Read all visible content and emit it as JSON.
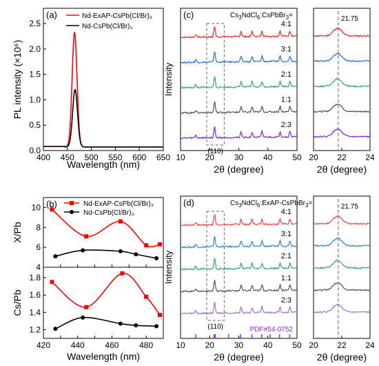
{
  "chart_data": [
    {
      "id": "a",
      "panel_label": "(a)",
      "type": "line",
      "xlabel": "Wavelength (nm)",
      "ylabel": "PL intensity (×10⁶)",
      "xlim": [
        400,
        650
      ],
      "ylim": [
        0,
        2.8
      ],
      "xticks": [
        "400",
        "450",
        "500",
        "550",
        "600",
        "650"
      ],
      "yticks": [
        "0.0",
        "0.5",
        "1.0",
        "1.5",
        "2.0",
        "2.5"
      ],
      "legend_position": "top-left",
      "series": [
        {
          "name": "Nd-ExAP-CsPb(Cl/Br)₃",
          "color": "#ff0000",
          "peak_x": 465,
          "peak_y": 2.25,
          "baseline": 0.07,
          "fwhm_nm": 12
        },
        {
          "name": "Nd-CsPb(Cl/Br)₃",
          "color": "#000000",
          "peak_x": 466,
          "peak_y": 1.13,
          "baseline": 0.07,
          "fwhm_nm": 12
        }
      ]
    },
    {
      "id": "b_top",
      "panel_label": "(b)",
      "type": "line",
      "xlabel": "",
      "ylabel": "X/Pb",
      "xlim": [
        420,
        490
      ],
      "ylim": [
        4,
        11
      ],
      "yticks": [
        "4",
        "6",
        "8",
        "10"
      ],
      "legend_position": "top-center",
      "series": [
        {
          "name": "Nd-ExAP-CsPb(Cl/Br)₃",
          "color": "#ff0000",
          "marker": "square",
          "x": [
            425,
            445,
            465,
            480,
            488
          ],
          "y": [
            9.8,
            7.1,
            8.6,
            6.2,
            6.3
          ]
        },
        {
          "name": "Nd-CsPb(Cl/Br)₃",
          "color": "#000000",
          "marker": "circle",
          "x": [
            427,
            443,
            465,
            474,
            486
          ],
          "y": [
            5.1,
            5.7,
            5.6,
            5.3,
            4.9
          ]
        }
      ]
    },
    {
      "id": "b_bottom",
      "type": "line",
      "xlabel": "Wavelength (nm)",
      "ylabel": "Cs/Pb",
      "xlim": [
        420,
        490
      ],
      "ylim": [
        1.1,
        1.92
      ],
      "xticks": [
        "420",
        "430",
        "440",
        "450",
        "460",
        "470",
        "480",
        "490"
      ],
      "yticks": [
        "1.2",
        "1.4",
        "1.6",
        "1.8"
      ],
      "series": [
        {
          "name": "Nd-ExAP-CsPb(Cl/Br)₃",
          "color": "#ff0000",
          "marker": "square",
          "x": [
            425,
            445,
            466,
            480,
            488
          ],
          "y": [
            1.75,
            1.46,
            1.85,
            1.58,
            1.37
          ]
        },
        {
          "name": "Nd-CsPb(Cl/Br)₃",
          "color": "#000000",
          "marker": "circle",
          "x": [
            427,
            443,
            465,
            474,
            486
          ],
          "y": [
            1.21,
            1.34,
            1.27,
            1.25,
            1.24
          ]
        }
      ]
    },
    {
      "id": "c",
      "panel_label": "(c)",
      "type": "line",
      "header_prefix": "Cs",
      "header_sub1": "3",
      "header_mid": "NdCl",
      "header_sub2": "6",
      "header_suffix": ":CsPbBr",
      "header_sub3": "3",
      "header_end": "=",
      "xlabel": "2θ (degree)",
      "ylabel": "Intensity",
      "xlim": [
        10,
        50
      ],
      "xticks": [
        "10",
        "20",
        "30",
        "40",
        "50"
      ],
      "box_label": "(110)",
      "box_range": [
        19,
        25
      ],
      "series": [
        {
          "name": "4:1",
          "color": "#ff2020"
        },
        {
          "name": "3:1",
          "color": "#1f6fe0"
        },
        {
          "name": "2:1",
          "color": "#2ea860"
        },
        {
          "name": "1:1",
          "color": "#505050"
        },
        {
          "name": "2:3",
          "color": "#8020e0"
        }
      ],
      "peaks": [
        15.2,
        21.7,
        30.8,
        34.6,
        38.0,
        44.2,
        47.6
      ]
    },
    {
      "id": "c_zoom",
      "type": "line",
      "xlabel": "2θ (degree)",
      "xlim": [
        20,
        24
      ],
      "xticks": [
        "20",
        "22",
        "24"
      ],
      "ref_line_x": 21.75,
      "ref_line_label": "21.75"
    },
    {
      "id": "d",
      "panel_label": "(d)",
      "type": "line",
      "header_prefix": "Cs",
      "header_sub1": "3",
      "header_mid": "NdCl",
      "header_sub2": "6",
      "header_suffix": ":ExAP-CsPbBr",
      "header_sub3": "3",
      "header_end": "=",
      "xlabel": "2θ (degree)",
      "ylabel": "Intensity",
      "xlim": [
        10,
        50
      ],
      "xticks": [
        "10",
        "20",
        "30",
        "40",
        "50"
      ],
      "box_label": "(110)",
      "box_range": [
        19,
        25
      ],
      "reference_label": "PDF#54-0752",
      "reference_color": "#a020f0",
      "reference_sticks": [
        15.2,
        21.5,
        21.9,
        26.5,
        30.6,
        34.5,
        37.9,
        40.8,
        44.0,
        47.5
      ],
      "series": [
        {
          "name": "4:1",
          "color": "#ff4040"
        },
        {
          "name": "3:1",
          "color": "#2f7fe0"
        },
        {
          "name": "2:1",
          "color": "#2ea860"
        },
        {
          "name": "1:1",
          "color": "#505050"
        },
        {
          "name": "2:3",
          "color": "#a070e0"
        }
      ],
      "peaks": [
        15.2,
        21.7,
        30.8,
        34.6,
        38.0,
        44.2,
        47.6
      ]
    },
    {
      "id": "d_zoom",
      "type": "line",
      "xlabel": "2θ (degree)",
      "xlim": [
        20,
        24
      ],
      "xticks": [
        "20",
        "22",
        "24"
      ],
      "ref_line_x": 21.75,
      "ref_line_label": "21.75"
    }
  ]
}
